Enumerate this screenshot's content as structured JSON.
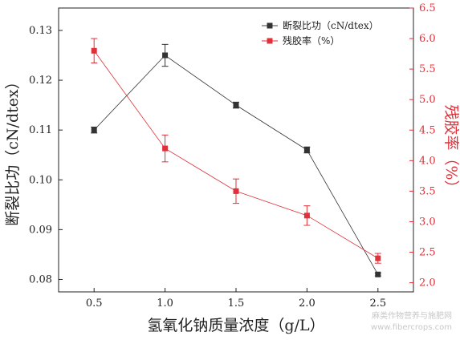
{
  "chart_data": {
    "type": "line",
    "xlabel": "氢氧化钠质量浓度（g/L）",
    "x": [
      0.5,
      1.0,
      1.5,
      2.0,
      2.5
    ],
    "x_ticks": [
      "0.5",
      "1.0",
      "1.5",
      "2.0",
      "2.5"
    ],
    "xlim": [
      0.25,
      2.75
    ],
    "y_left": {
      "label": "断裂比功（cN/dtex）",
      "lim": [
        0.0775,
        0.1345
      ],
      "ticks": [
        "0.08",
        "0.09",
        "0.10",
        "0.11",
        "0.12",
        "0.13"
      ]
    },
    "y_right": {
      "label": "残胶率（%）",
      "lim": [
        1.85,
        6.5
      ],
      "ticks": [
        "2.0",
        "2.5",
        "3.0",
        "3.5",
        "4.0",
        "4.5",
        "5.0",
        "5.5",
        "6.0",
        "6.5"
      ]
    },
    "series": [
      {
        "name": "断裂比功（cN/dtex）",
        "axis": "left",
        "color": "#333333",
        "values": [
          0.11,
          0.125,
          0.115,
          0.106,
          0.081
        ],
        "errors": [
          0.0006,
          0.0022,
          0.0006,
          0.0006,
          0.0003
        ]
      },
      {
        "name": "残胶率（%）",
        "axis": "right",
        "color": "#e0303a",
        "values": [
          5.8,
          4.2,
          3.5,
          3.1,
          2.4
        ],
        "errors": [
          0.2,
          0.22,
          0.2,
          0.16,
          0.08
        ]
      }
    ],
    "legend_position": "top-right",
    "grid": false
  },
  "watermark": {
    "line1": "麻类作物营养与施肥网",
    "line2": "www.fibercrops.com"
  }
}
